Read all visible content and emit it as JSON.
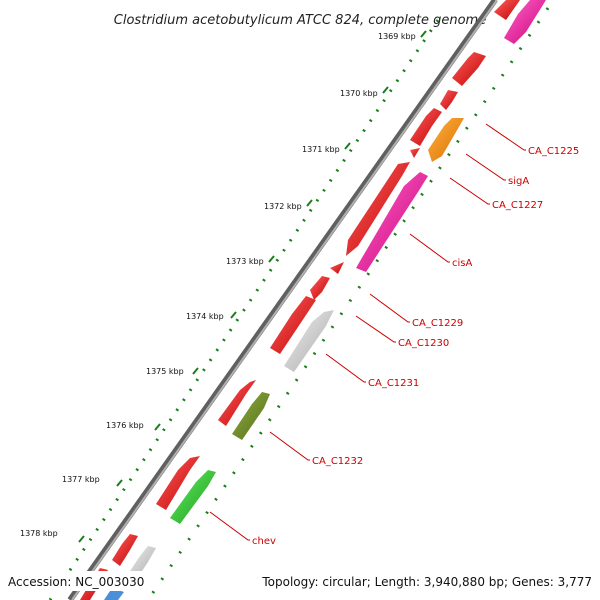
{
  "title": "Clostridium acetobutylicum ATCC 824, complete genome",
  "footer": {
    "accession": "Accession: NC_003030",
    "summary": "Topology: circular; Length: 3,940,880 bp; Genes: 3,777"
  },
  "scale": {
    "ticks": [
      "1369 kbp",
      "1370 kbp",
      "1371 kbp",
      "1372 kbp",
      "1373 kbp",
      "1374 kbp",
      "1375 kbp",
      "1376 kbp",
      "1377 kbp",
      "1378 kbp"
    ]
  },
  "genes": [
    {
      "name": "CA_C1225",
      "color": "#ff8c00"
    },
    {
      "name": "sigA",
      "color": "#ff0000"
    },
    {
      "name": "CA_C1227",
      "color": "#ff0000"
    },
    {
      "name": "cisA",
      "color": "#ff1493"
    },
    {
      "name": "CA_C1229",
      "color": "#ff0000"
    },
    {
      "name": "CA_C1230",
      "color": "#ff0000"
    },
    {
      "name": "CA_C1231",
      "color": "#c8c8c8"
    },
    {
      "name": "CA_C1232",
      "color": "#6b8e23"
    },
    {
      "name": "chev",
      "color": "#32cd32"
    }
  ],
  "colors": {
    "backbone": "#808080",
    "tick": "#1a7f1a",
    "label_line": "#cc0000",
    "red": "#ff0000",
    "magenta": "#ff1493",
    "orange": "#ff8c00",
    "grey": "#c8c8c8",
    "olive": "#6b8e23",
    "green": "#32cd32",
    "blue": "#4a90d9"
  }
}
